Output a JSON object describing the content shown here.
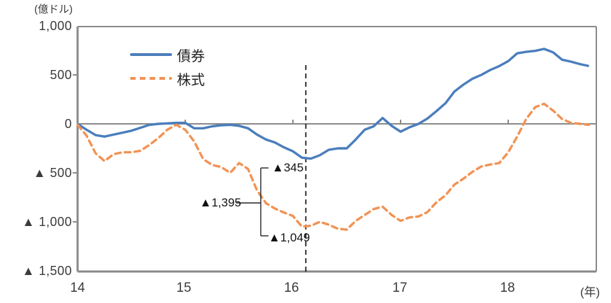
{
  "chart_data": {
    "type": "line",
    "title": "",
    "unit_label": "(億ドル)",
    "x_unit_label": "(年)",
    "grid": "off",
    "legend_position": "top-left-inside",
    "xlim": [
      14,
      18.82
    ],
    "ylim": [
      -1500,
      1000
    ],
    "x_ticks": [
      {
        "t": 14,
        "label": "14"
      },
      {
        "t": 15,
        "label": "15"
      },
      {
        "t": 16,
        "label": "16"
      },
      {
        "t": 17,
        "label": "17"
      },
      {
        "t": 18,
        "label": "18"
      }
    ],
    "y_ticks": [
      {
        "v": 1000,
        "label": "1,000"
      },
      {
        "v": 500,
        "label": "500"
      },
      {
        "v": 0,
        "label": "0"
      },
      {
        "v": -500,
        "label": "▲ 500"
      },
      {
        "v": -1000,
        "label": "▲ 1,000"
      },
      {
        "v": -1500,
        "label": "▲ 1,500"
      }
    ],
    "x_start": 14.0,
    "x_step": 0.083333,
    "series": [
      {
        "name": "債券",
        "color": "#4a7ebc",
        "style": "solid",
        "values": [
          0,
          -60,
          -115,
          -130,
          -110,
          -90,
          -70,
          -40,
          -10,
          0,
          5,
          10,
          10,
          -45,
          -45,
          -25,
          -15,
          -10,
          -20,
          -45,
          -110,
          -160,
          -190,
          -240,
          -280,
          -345,
          -355,
          -320,
          -265,
          -250,
          -250,
          -160,
          -60,
          -25,
          60,
          -20,
          -80,
          -35,
          0,
          55,
          130,
          210,
          330,
          400,
          460,
          500,
          550,
          590,
          640,
          720,
          735,
          745,
          765,
          730,
          655,
          635,
          610,
          590
        ]
      },
      {
        "name": "株式",
        "color": "#f29355",
        "style": "dashed",
        "values": [
          -10,
          -120,
          -300,
          -380,
          -310,
          -290,
          -290,
          -275,
          -215,
          -145,
          -60,
          -10,
          -60,
          -180,
          -360,
          -420,
          -440,
          -500,
          -400,
          -460,
          -680,
          -810,
          -865,
          -905,
          -940,
          -1049,
          -1040,
          -1000,
          -1030,
          -1070,
          -1080,
          -990,
          -930,
          -870,
          -845,
          -930,
          -990,
          -955,
          -945,
          -900,
          -800,
          -730,
          -620,
          -560,
          -490,
          -435,
          -415,
          -400,
          -290,
          -130,
          50,
          170,
          205,
          135,
          50,
          10,
          0,
          -10
        ]
      }
    ],
    "vline": {
      "t": 16.12,
      "style": "dashed",
      "color": "#000000"
    },
    "annotations": [
      {
        "label": "▲345",
        "value": -345,
        "series": "債券"
      },
      {
        "label": "▲1,049",
        "value": -1049,
        "series": "株式"
      },
      {
        "label": "▲1,395",
        "value": -1395,
        "series": "合計"
      }
    ],
    "axis_color": "#898989"
  }
}
